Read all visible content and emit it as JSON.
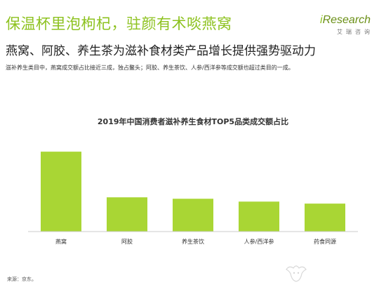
{
  "header": {
    "headline": "保温杯里泡枸杞，驻颜有术啖燕窝",
    "subheadline": "燕窝、阿胶、养生茶为滋补食材类产品增长提供强势驱动力",
    "note": "滋补养生类目中，燕窝成交额占比接近三成，独占鳌头；阿胶、养生茶饮、人参/西洋参等成交额也超过类目的一成。"
  },
  "logo": {
    "brand_i": "i",
    "brand_rest": "Research",
    "sub": "艾瑞咨询"
  },
  "colors": {
    "accent": "#8dc21f",
    "bar": "#a9d634",
    "text": "#222222"
  },
  "chart_data": {
    "type": "bar",
    "title": "2019年中国消费者滋补养生食材TOP5品类成交额占比",
    "categories": [
      "燕窝",
      "阿胶",
      "养生茶饮",
      "人参/西洋参",
      "药食同源"
    ],
    "values": [
      28,
      12,
      11.5,
      10.5,
      9.8
    ],
    "ylim": [
      0,
      30
    ],
    "grid": false,
    "legend": "none"
  },
  "footer": {
    "source": "来源：京东。"
  }
}
